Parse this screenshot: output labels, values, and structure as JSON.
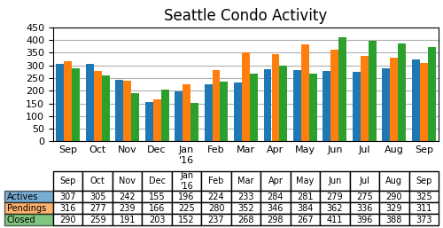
{
  "chart_data": {
    "type": "bar",
    "title": "Seattle Condo Activity",
    "categories": [
      "Sep",
      "Oct",
      "Nov",
      "Dec",
      "Jan\n'16",
      "Feb",
      "Mar",
      "Apr",
      "May",
      "Jun",
      "Jul",
      "Aug",
      "Sep"
    ],
    "series": [
      {
        "name": "Actives",
        "values": [
          307,
          305,
          242,
          155,
          196,
          224,
          233,
          284,
          281,
          279,
          275,
          290,
          325
        ]
      },
      {
        "name": "Pendings",
        "values": [
          316,
          277,
          239,
          166,
          225,
          280,
          352,
          346,
          384,
          362,
          336,
          329,
          311
        ]
      },
      {
        "name": "Closed",
        "values": [
          290,
          259,
          191,
          203,
          152,
          237,
          268,
          298,
          267,
          411,
          396,
          388,
          373
        ]
      }
    ],
    "ylim": [
      0,
      450
    ],
    "yticks": [
      0,
      50,
      100,
      150,
      200,
      250,
      300,
      350,
      400,
      450
    ],
    "grid": true
  }
}
